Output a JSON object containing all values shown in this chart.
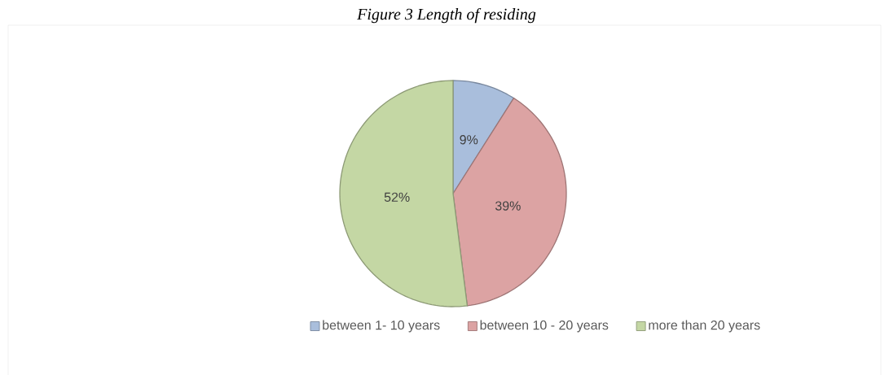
{
  "chart_data": {
    "type": "pie",
    "title": "Figure 3 Length of residing",
    "categories": [
      "between 1- 10 years",
      "between 10 - 20 years",
      "more than 20 years"
    ],
    "values": [
      9,
      39,
      52
    ],
    "colors": [
      "#a9bedc",
      "#dca3a3",
      "#c4d7a4"
    ],
    "value_labels": [
      "9%",
      "39%",
      "52%"
    ],
    "legend": "bottom"
  }
}
